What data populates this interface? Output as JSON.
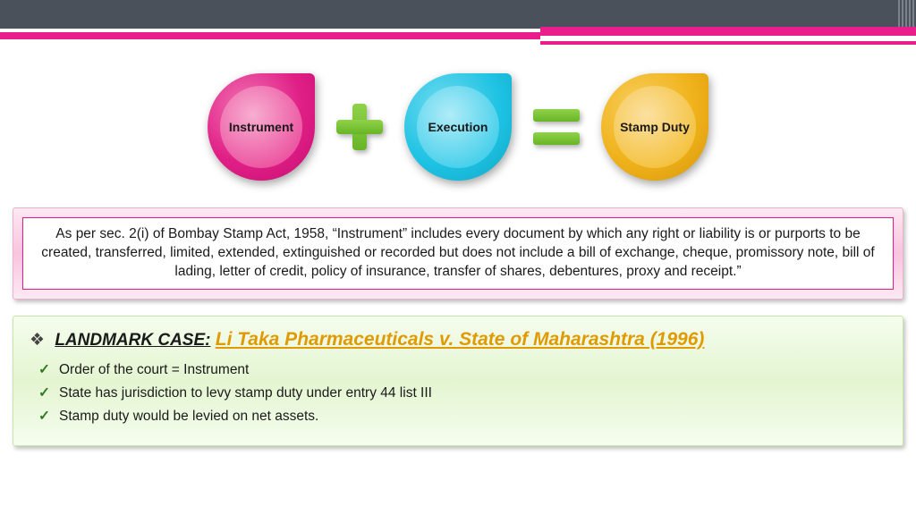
{
  "colors": {
    "top_bar": "#4a515b",
    "accent_pink": "#e91e8c",
    "plus_eq_green": "#78c336",
    "teardrop_pink": "#e33a93",
    "teardrop_cyan": "#2cc3e2",
    "teardrop_gold": "#f0b52a",
    "def_border": "#e01f86",
    "case_bg": "#ecf8dd",
    "case_title": "#e09a00"
  },
  "equation": {
    "term1": "Instrument",
    "term2": "Execution",
    "result": "Stamp Duty"
  },
  "definition_text": "As per sec. 2(i) of Bombay Stamp Act, 1958, “Instrument” includes every document by which any right or liability is or purports to be created, transferred, limited, extended, extinguished or recorded but does not include a bill of exchange, cheque, promissory note, bill of lading, letter of credit, policy of insurance, transfer of shares, debentures, proxy and receipt.”",
  "case": {
    "label": "LANDMARK CASE:",
    "name": "Li Taka Pharmaceuticals v. State of Maharashtra (1996)",
    "points": [
      "Order of the court = Instrument",
      "State has jurisdiction to levy stamp duty under entry 44 list III",
      "Stamp duty would be levied on net assets."
    ]
  }
}
